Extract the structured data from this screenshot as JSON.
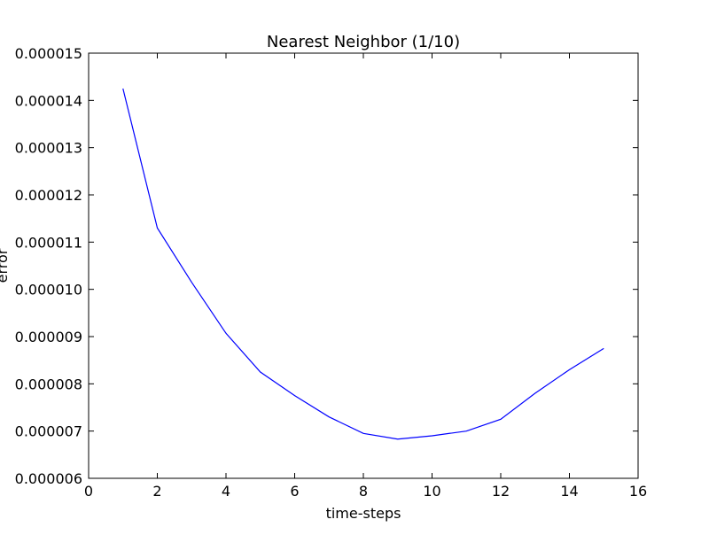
{
  "chart_data": {
    "type": "line",
    "title": "Nearest Neighbor (1/10)",
    "xlabel": "time-steps",
    "ylabel": "error",
    "xlim": [
      0,
      16
    ],
    "ylim": [
      6e-06,
      1.5e-05
    ],
    "grid": false,
    "x_ticks": [
      0,
      2,
      4,
      6,
      8,
      10,
      12,
      14,
      16
    ],
    "y_ticks": [
      6e-06,
      7e-06,
      8e-06,
      9e-06,
      1e-05,
      1.1e-05,
      1.2e-05,
      1.3e-05,
      1.4e-05,
      1.5e-05
    ],
    "x_tick_labels": [
      "0",
      "2",
      "4",
      "6",
      "8",
      "10",
      "12",
      "14",
      "16"
    ],
    "y_tick_labels": [
      "0.000006",
      "0.000007",
      "0.000008",
      "0.000009",
      "0.000010",
      "0.000011",
      "0.000012",
      "0.000013",
      "0.000014",
      "0.000015"
    ],
    "series": [
      {
        "color": "#0000ff",
        "x": [
          1,
          2,
          3,
          4,
          5,
          6,
          7,
          8,
          9,
          10,
          11,
          12,
          13,
          14,
          15
        ],
        "y": [
          1.425e-05,
          1.13e-05,
          1.015e-05,
          9.07e-06,
          8.25e-06,
          7.75e-06,
          7.3e-06,
          6.95e-06,
          6.83e-06,
          6.9e-06,
          7e-06,
          7.25e-06,
          7.8e-06,
          8.3e-06,
          8.75e-06
        ]
      }
    ]
  }
}
